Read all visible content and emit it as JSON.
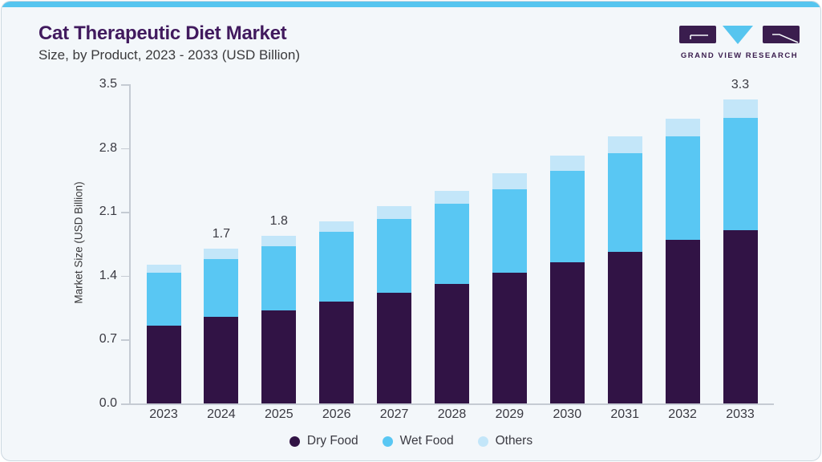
{
  "header": {
    "title": "Cat Therapeutic Diet Market",
    "subtitle": "Size, by Product, 2023 - 2033 (USD Billion)"
  },
  "logo": {
    "text": "GRAND VIEW RESEARCH",
    "purple": "#3a1d4e",
    "blue": "#56c5ef"
  },
  "colors": {
    "card_background": "#f3f7fa",
    "top_strip": "#56c5ef",
    "title_purple": "#411a5e",
    "axis_line": "#c5cbd3",
    "text": "#3a3a42"
  },
  "chart_data": {
    "type": "bar",
    "stacked": true,
    "title": "Cat Therapeutic Diet Market Size, by Product, 2023 - 2033 (USD Billion)",
    "categories": [
      "2023",
      "2024",
      "2025",
      "2026",
      "2027",
      "2028",
      "2029",
      "2030",
      "2031",
      "2032",
      "2033"
    ],
    "series": [
      {
        "name": "Dry Food",
        "color": "#311345",
        "values": [
          0.85,
          0.95,
          1.02,
          1.12,
          1.21,
          1.31,
          1.43,
          1.55,
          1.66,
          1.79,
          1.9
        ]
      },
      {
        "name": "Wet Food",
        "color": "#59c7f3",
        "values": [
          0.58,
          0.63,
          0.7,
          0.76,
          0.81,
          0.88,
          0.92,
          1.0,
          1.08,
          1.14,
          1.23
        ]
      },
      {
        "name": "Others",
        "color": "#c3e6f9",
        "values": [
          0.09,
          0.12,
          0.12,
          0.12,
          0.14,
          0.14,
          0.17,
          0.17,
          0.19,
          0.19,
          0.2
        ]
      }
    ],
    "totals": [
      1.52,
      1.7,
      1.84,
      2.0,
      2.16,
      2.33,
      2.52,
      2.72,
      2.93,
      3.12,
      3.33
    ],
    "bar_labels": {
      "2024": "1.7",
      "2025": "1.8",
      "2033": "3.3"
    },
    "xlabel": "",
    "ylabel": "Market Size (USD Billion)",
    "ylim": [
      0,
      3.5
    ],
    "yticks": [
      "0.0",
      "0.7",
      "1.4",
      "2.1",
      "2.8",
      "3.5"
    ],
    "legend_position": "bottom",
    "grid": false
  }
}
